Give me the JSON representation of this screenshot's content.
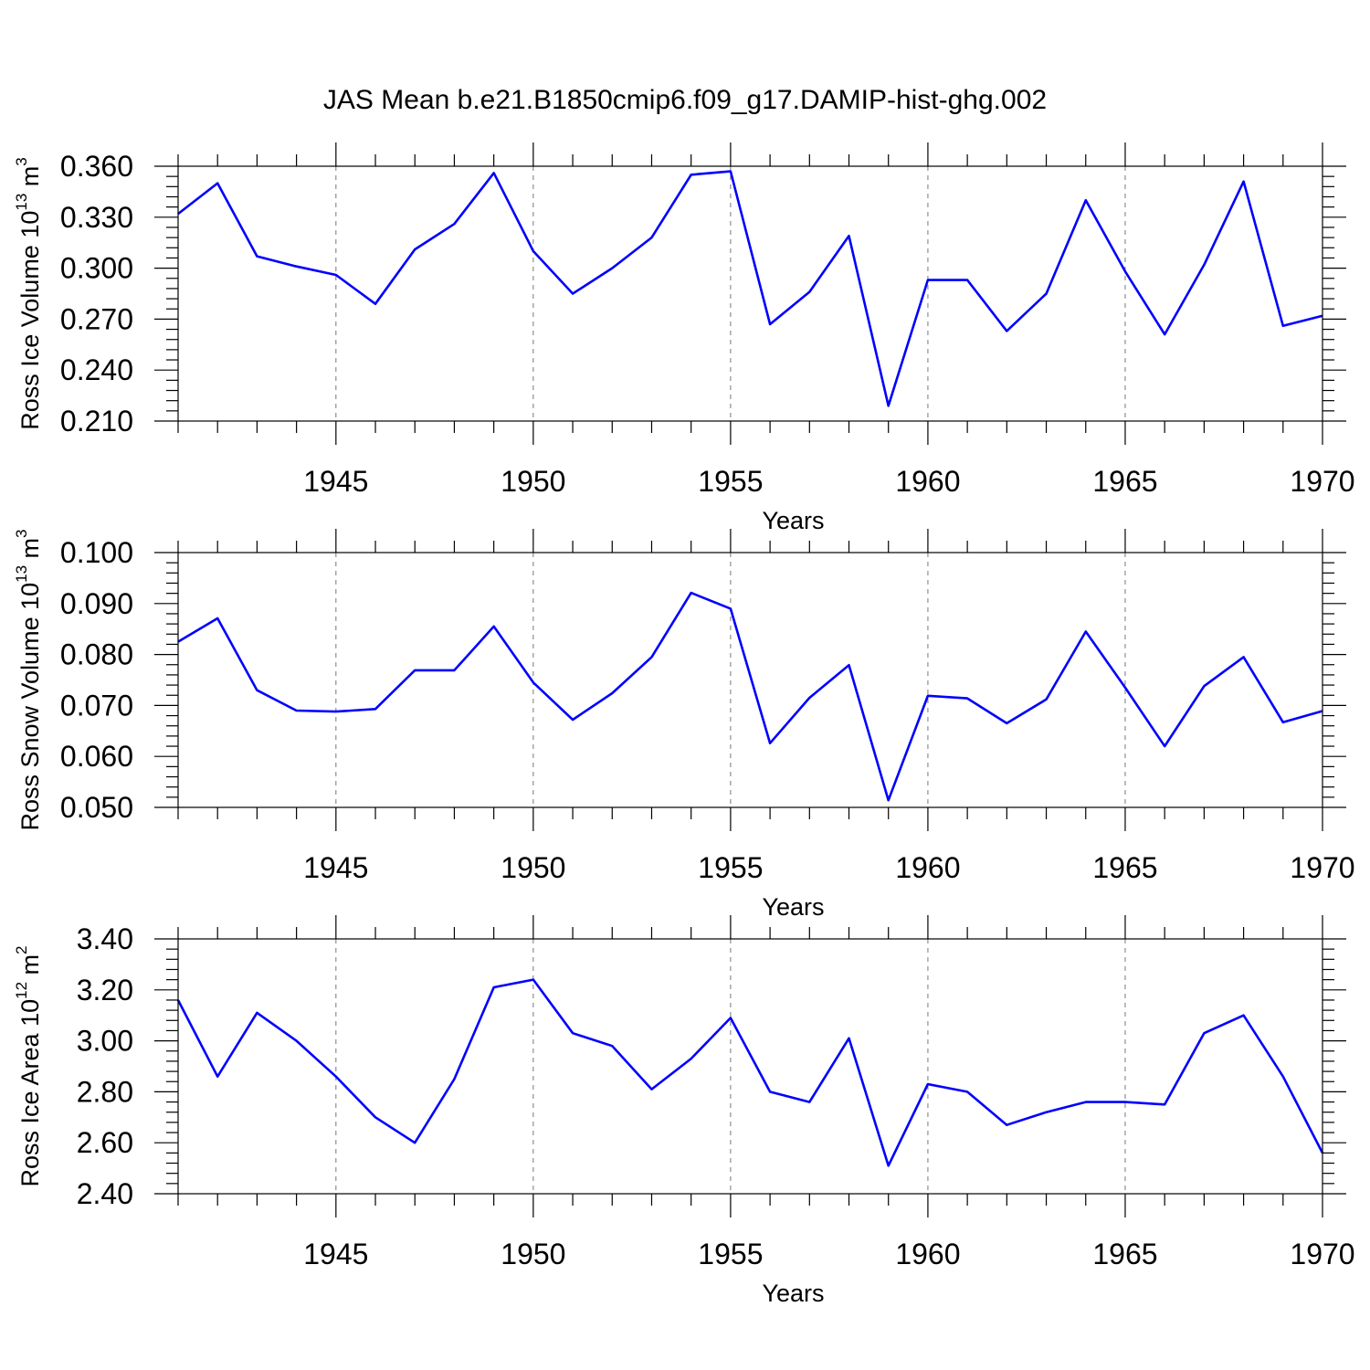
{
  "title": "JAS Mean b.e21.B1850cmip6.f09_g17.DAMIP-hist-ghg.002",
  "chart_data": [
    {
      "type": "line",
      "ylabel_main": "Ross Ice Volume 10",
      "ylabel_exp": "13",
      "ylabel_unit": "m",
      "ylabel_unit_exp": "3",
      "xlabel": "Years",
      "xlim": [
        1941,
        1970
      ],
      "ylim": [
        0.21,
        0.36
      ],
      "yticks": [
        "0.210",
        "0.240",
        "0.270",
        "0.300",
        "0.330",
        "0.360"
      ],
      "ytick_values": [
        0.21,
        0.24,
        0.27,
        0.3,
        0.33,
        0.36
      ],
      "xticks": [
        "1945",
        "1950",
        "1955",
        "1960",
        "1965",
        "1970"
      ],
      "xtick_values": [
        1945,
        1950,
        1955,
        1960,
        1965,
        1970
      ],
      "line_color": "#0000ff",
      "x": [
        1941,
        1942,
        1943,
        1944,
        1945,
        1946,
        1947,
        1948,
        1949,
        1950,
        1951,
        1952,
        1953,
        1954,
        1955,
        1956,
        1957,
        1958,
        1959,
        1960,
        1961,
        1962,
        1963,
        1964,
        1965,
        1966,
        1967,
        1968,
        1969,
        1970
      ],
      "values": [
        0.332,
        0.35,
        0.307,
        0.301,
        0.296,
        0.279,
        0.311,
        0.326,
        0.356,
        0.31,
        0.285,
        0.3,
        0.318,
        0.355,
        0.357,
        0.267,
        0.286,
        0.319,
        0.219,
        0.293,
        0.293,
        0.263,
        0.285,
        0.34,
        0.298,
        0.261,
        0.302,
        0.351,
        0.266,
        0.272
      ]
    },
    {
      "type": "line",
      "ylabel_main": "Ross Snow Volume 10",
      "ylabel_exp": "13",
      "ylabel_unit": "m",
      "ylabel_unit_exp": "3",
      "xlabel": "Years",
      "xlim": [
        1941,
        1970
      ],
      "ylim": [
        0.05,
        0.1
      ],
      "yticks": [
        "0.050",
        "0.060",
        "0.070",
        "0.080",
        "0.090",
        "0.100"
      ],
      "ytick_values": [
        0.05,
        0.06,
        0.07,
        0.08,
        0.09,
        0.1
      ],
      "xticks": [
        "1945",
        "1950",
        "1955",
        "1960",
        "1965",
        "1970"
      ],
      "xtick_values": [
        1945,
        1950,
        1955,
        1960,
        1965,
        1970
      ],
      "line_color": "#0000ff",
      "x": [
        1941,
        1942,
        1943,
        1944,
        1945,
        1946,
        1947,
        1948,
        1949,
        1950,
        1951,
        1952,
        1953,
        1954,
        1955,
        1956,
        1957,
        1958,
        1959,
        1960,
        1961,
        1962,
        1963,
        1964,
        1965,
        1966,
        1967,
        1968,
        1969,
        1970
      ],
      "values": [
        0.0825,
        0.0871,
        0.073,
        0.069,
        0.0688,
        0.0693,
        0.0769,
        0.0769,
        0.0855,
        0.0745,
        0.0672,
        0.0724,
        0.0795,
        0.0921,
        0.089,
        0.0626,
        0.0715,
        0.0779,
        0.0514,
        0.0719,
        0.0714,
        0.0665,
        0.0712,
        0.0845,
        0.0735,
        0.062,
        0.0738,
        0.0795,
        0.0667,
        0.0689
      ]
    },
    {
      "type": "line",
      "ylabel_main": "Ross Ice Area 10",
      "ylabel_exp": "12",
      "ylabel_unit": "m",
      "ylabel_unit_exp": "2",
      "xlabel": "Years",
      "xlim": [
        1941,
        1970
      ],
      "ylim": [
        2.4,
        3.4
      ],
      "yticks": [
        "2.40",
        "2.60",
        "2.80",
        "3.00",
        "3.20",
        "3.40"
      ],
      "ytick_values": [
        2.4,
        2.6,
        2.8,
        3.0,
        3.2,
        3.4
      ],
      "xticks": [
        "1945",
        "1950",
        "1955",
        "1960",
        "1965",
        "1970"
      ],
      "xtick_values": [
        1945,
        1950,
        1955,
        1960,
        1965,
        1970
      ],
      "line_color": "#0000ff",
      "x": [
        1941,
        1942,
        1943,
        1944,
        1945,
        1946,
        1947,
        1948,
        1949,
        1950,
        1951,
        1952,
        1953,
        1954,
        1955,
        1956,
        1957,
        1958,
        1959,
        1960,
        1961,
        1962,
        1963,
        1964,
        1965,
        1966,
        1967,
        1968,
        1969,
        1970
      ],
      "values": [
        3.16,
        2.86,
        3.11,
        3.0,
        2.86,
        2.7,
        2.6,
        2.85,
        3.21,
        3.24,
        3.03,
        2.98,
        2.81,
        2.93,
        3.09,
        2.8,
        2.76,
        3.01,
        2.51,
        2.83,
        2.8,
        2.67,
        2.72,
        2.76,
        2.76,
        2.75,
        3.03,
        3.1,
        2.86,
        2.56
      ]
    }
  ]
}
